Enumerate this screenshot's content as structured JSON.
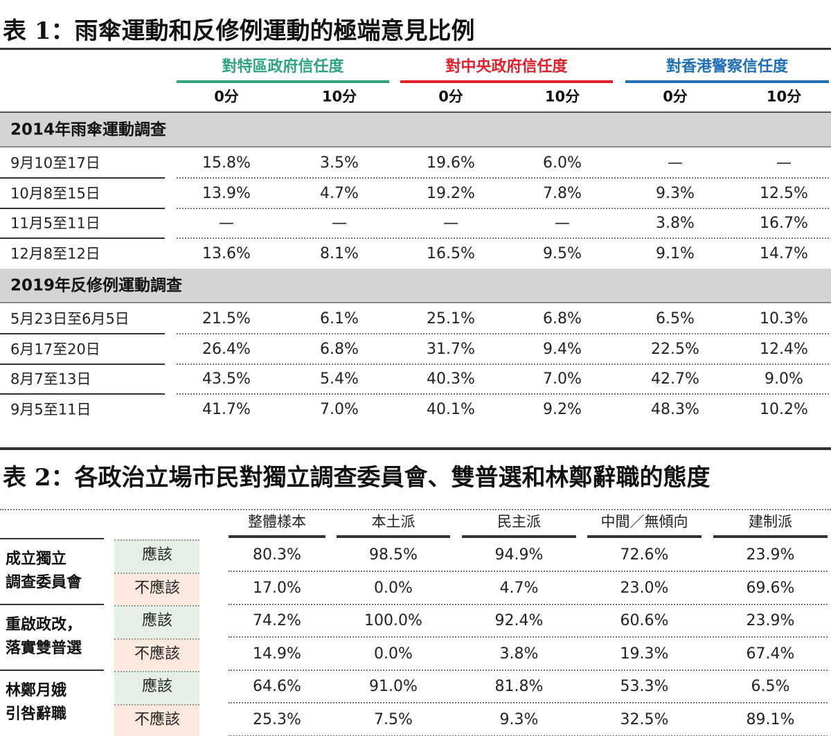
{
  "table1": {
    "title": "表 1：雨傘運動和反修例運動的極端意見比例",
    "groups": [
      {
        "label": "對特區政府信任度",
        "color": "#2fa57f"
      },
      {
        "label": "對中央政府信任度",
        "color": "#e0202a"
      },
      {
        "label": "對香港警察信任度",
        "color": "#1e6fb8"
      }
    ],
    "subheaders": [
      "0分",
      "10分",
      "0分",
      "10分",
      "0分",
      "10分"
    ],
    "sections": [
      {
        "title": "2014年雨傘運動調查",
        "rows": [
          [
            "9月10至17日",
            "15.8%",
            "3.5%",
            "19.6%",
            "6.0%",
            "—",
            "—"
          ],
          [
            "10月8至15日",
            "13.9%",
            "4.7%",
            "19.2%",
            "7.8%",
            "9.3%",
            "12.5%"
          ],
          [
            "11月5至11日",
            "—",
            "—",
            "—",
            "—",
            "3.8%",
            "16.7%"
          ],
          [
            "12月8至12日",
            "13.6%",
            "8.1%",
            "16.5%",
            "9.5%",
            "9.1%",
            "14.7%"
          ]
        ]
      },
      {
        "title": "2019年反修例運動調查",
        "rows": [
          [
            "5月23日至6月5日",
            "21.5%",
            "6.1%",
            "25.1%",
            "6.8%",
            "6.5%",
            "10.3%"
          ],
          [
            "6月17至20日",
            "26.4%",
            "6.8%",
            "31.7%",
            "9.4%",
            "22.5%",
            "12.4%"
          ],
          [
            "8月7至13日",
            "43.5%",
            "5.4%",
            "40.3%",
            "7.0%",
            "42.7%",
            "9.0%"
          ],
          [
            "9月5至11日",
            "41.7%",
            "7.0%",
            "40.1%",
            "9.2%",
            "48.3%",
            "10.2%"
          ]
        ]
      }
    ]
  },
  "table2": {
    "title": "表 2：各政治立場市民對獨立調查委員會、雙普選和林鄭辭職的態度",
    "columns": [
      "整體樣本",
      "本土派",
      "民主派",
      "中間／無傾向",
      "建制派"
    ],
    "groups": [
      {
        "lines": [
          "成立獨立",
          "調查委員會"
        ],
        "rows": [
          {
            "answer": "應該",
            "values": [
              "80.3%",
              "98.5%",
              "94.9%",
              "72.6%",
              "23.9%"
            ]
          },
          {
            "answer": "不應該",
            "values": [
              "17.0%",
              "0.0%",
              "4.7%",
              "23.0%",
              "69.6%"
            ]
          }
        ]
      },
      {
        "lines": [
          "重啟政改，",
          "落實雙普選"
        ],
        "rows": [
          {
            "answer": "應該",
            "values": [
              "74.2%",
              "100.0%",
              "92.4%",
              "60.6%",
              "23.9%"
            ]
          },
          {
            "answer": "不應該",
            "values": [
              "14.9%",
              "0.0%",
              "3.8%",
              "19.3%",
              "67.4%"
            ]
          }
        ]
      },
      {
        "lines": [
          "林鄭月娥",
          "引咎辭職"
        ],
        "rows": [
          {
            "answer": "應該",
            "values": [
              "64.6%",
              "91.0%",
              "81.8%",
              "53.3%",
              "6.5%"
            ]
          },
          {
            "answer": "不應該",
            "values": [
              "25.3%",
              "7.5%",
              "9.3%",
              "32.5%",
              "89.1%"
            ]
          }
        ]
      }
    ]
  }
}
